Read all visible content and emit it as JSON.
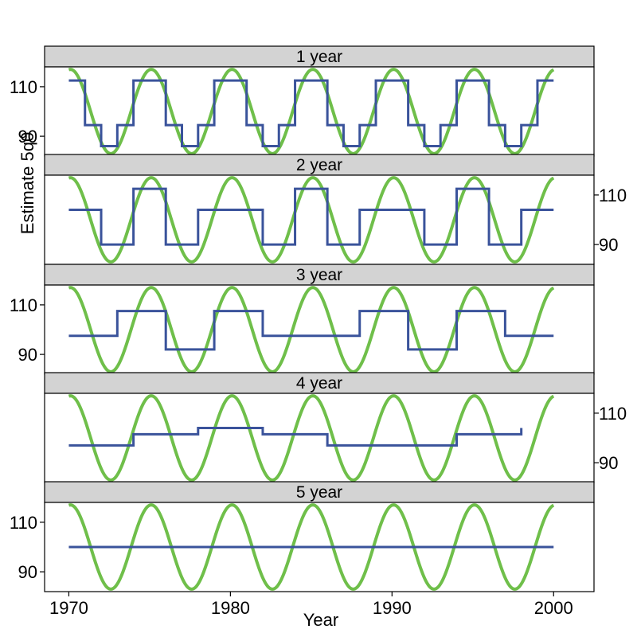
{
  "chart_data": {
    "type": "line",
    "xlabel": "Year",
    "ylabel": "Estimate 5q0",
    "xlim": [
      1968.5,
      2002.5
    ],
    "x_ticks": [
      1970,
      1980,
      1990,
      2000
    ],
    "colors": {
      "true_series": "#6fbf4a",
      "estimate_series": "#3a539b",
      "strip": "#d3d3d3"
    },
    "true_curve": {
      "mean": 100,
      "amplitude": 17,
      "period_years": 5,
      "peak_year": 1970.1
    },
    "panels": [
      {
        "strip_label": "1 year",
        "ylim": [
          82,
          118
        ],
        "y_ticks": [
          90,
          110
        ],
        "tick_side": "left",
        "step_x": [
          1970,
          1971,
          1972,
          1973,
          1974,
          1975,
          1976,
          1977,
          1978,
          1979,
          1980,
          1981,
          1982,
          1983,
          1984,
          1985,
          1986,
          1987,
          1988,
          1989,
          1990,
          1991,
          1992,
          1993,
          1994,
          1995,
          1996,
          1997,
          1998,
          1999,
          2000
        ],
        "step_y": [
          112.5,
          94.5,
          86,
          94.5,
          112.5,
          112.5,
          94.5,
          86,
          94.5,
          112.5,
          112.5,
          94.5,
          86,
          94.5,
          112.5,
          112.5,
          94.5,
          86,
          94.5,
          112.5,
          112.5,
          94.5,
          86,
          94.5,
          112.5,
          112.5,
          94.5,
          86,
          94.5,
          112.5,
          112.5
        ]
      },
      {
        "strip_label": "2 year",
        "ylim": [
          82,
          118
        ],
        "y_ticks": [
          90,
          110
        ],
        "tick_side": "right",
        "step_x": [
          1970,
          1972,
          1974,
          1976,
          1978,
          1980,
          1982,
          1984,
          1986,
          1988,
          1990,
          1992,
          1994,
          1996,
          1998,
          2000
        ],
        "step_y": [
          104,
          90,
          112.5,
          90,
          104,
          104,
          90,
          112.5,
          90,
          104,
          104,
          90,
          112.5,
          90,
          104,
          104
        ]
      },
      {
        "strip_label": "3 year",
        "ylim": [
          82,
          118
        ],
        "y_ticks": [
          90,
          110
        ],
        "tick_side": "left",
        "step_x": [
          1970,
          1973,
          1976,
          1979,
          1982,
          1985,
          1988,
          1991,
          1994,
          1997,
          2000
        ],
        "step_y": [
          97.5,
          107.5,
          92,
          107.5,
          97.5,
          97.5,
          107.5,
          92,
          107.5,
          97.5,
          97.5
        ]
      },
      {
        "strip_label": "4 year",
        "ylim": [
          82,
          118
        ],
        "y_ticks": [
          90,
          110
        ],
        "tick_side": "right",
        "step_x": [
          1970,
          1974,
          1978,
          1982,
          1986,
          1990,
          1994,
          1998
        ],
        "step_y": [
          97,
          101.5,
          104,
          101.5,
          97,
          97,
          101.5,
          104
        ]
      },
      {
        "strip_label": "5 year",
        "ylim": [
          82,
          118
        ],
        "y_ticks": [
          90,
          110
        ],
        "tick_side": "left",
        "step_x": [
          1970,
          2000
        ],
        "step_y": [
          100,
          100
        ]
      }
    ]
  }
}
